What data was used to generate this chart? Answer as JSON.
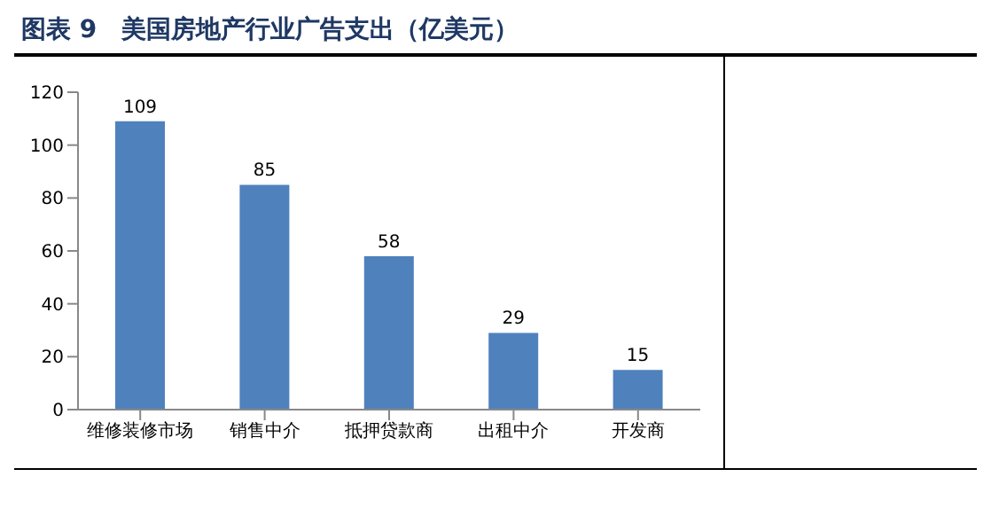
{
  "chart_data": {
    "type": "bar",
    "title": "图表 9　美国房地产行业广告支出（亿美元）",
    "categories": [
      "维修装修市场",
      "销售中介",
      "抵押贷款商",
      "出租中介",
      "开发商"
    ],
    "values": [
      109,
      85,
      58,
      29,
      15
    ],
    "color": "#4f81bd",
    "ylim": [
      0,
      120
    ],
    "yticks": [
      0,
      20,
      40,
      60,
      80,
      100,
      120
    ],
    "grid": false,
    "data_labels": true
  }
}
